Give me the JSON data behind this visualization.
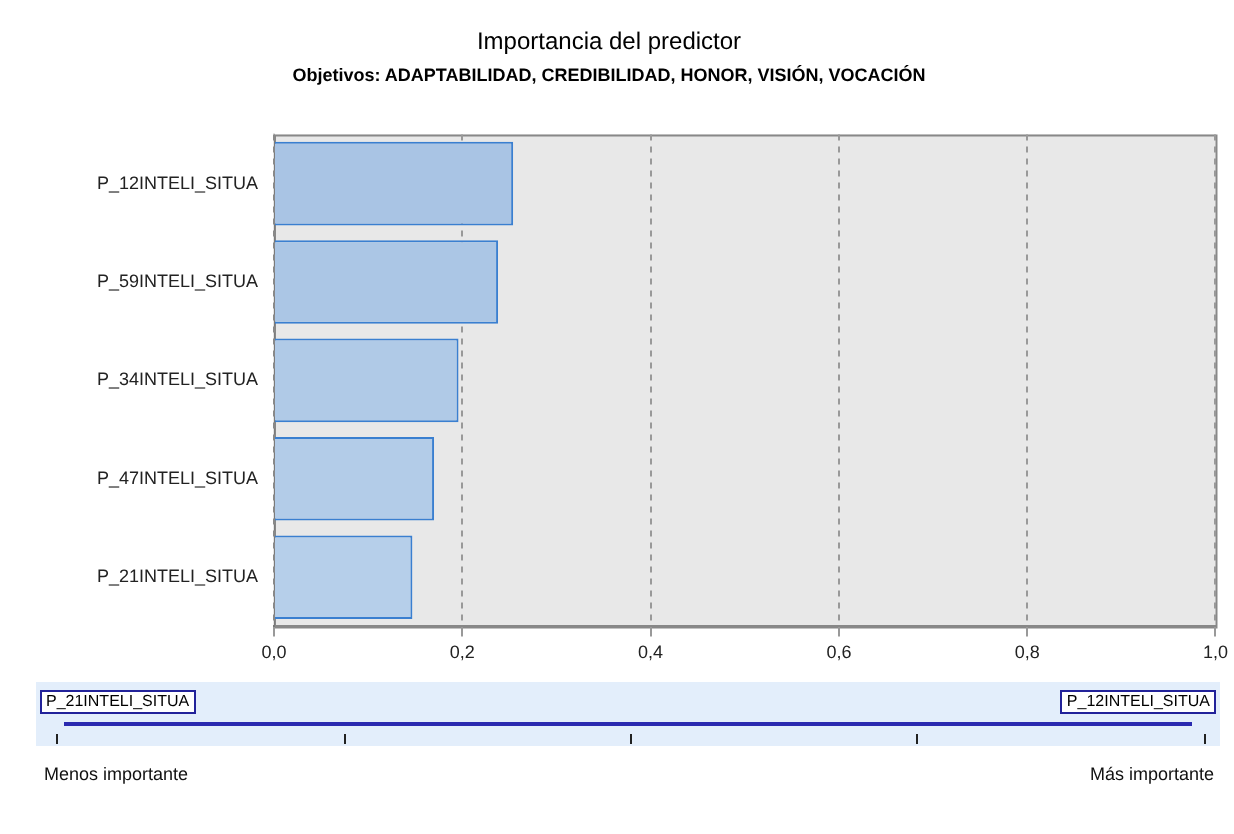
{
  "chart_data": {
    "type": "bar",
    "orientation": "horizontal",
    "title": "Importancia del predictor",
    "subtitle": "Objetivos: ADAPTABILIDAD, CREDIBILIDAD, HONOR, VISIÓN, VOCACIÓN",
    "categories": [
      "P_12INTELI_SITUA",
      "P_59INTELI_SITUA",
      "P_34INTELI_SITUA",
      "P_47INTELI_SITUA",
      "P_21INTELI_SITUA"
    ],
    "values": [
      0.254,
      0.238,
      0.196,
      0.17,
      0.147
    ],
    "colors": [
      "#a9c4e4",
      "#abc6e5",
      "#b0cae7",
      "#b3cce8",
      "#b6cfea"
    ],
    "xlim": [
      0,
      1
    ],
    "xticks": [
      {
        "value": 0,
        "label": "0,0"
      },
      {
        "value": 0.2,
        "label": "0,2"
      },
      {
        "value": 0.4,
        "label": "0,4"
      },
      {
        "value": 0.6,
        "label": "0,6"
      },
      {
        "value": 0.8,
        "label": "0,8"
      },
      {
        "value": 1,
        "label": "1,0"
      }
    ],
    "grid": "x",
    "legend": false,
    "annotations": [
      "P_21INTELI_SITUA",
      "P_12INTELI_SITUA",
      "Menos importante",
      "Más importante"
    ]
  }
}
